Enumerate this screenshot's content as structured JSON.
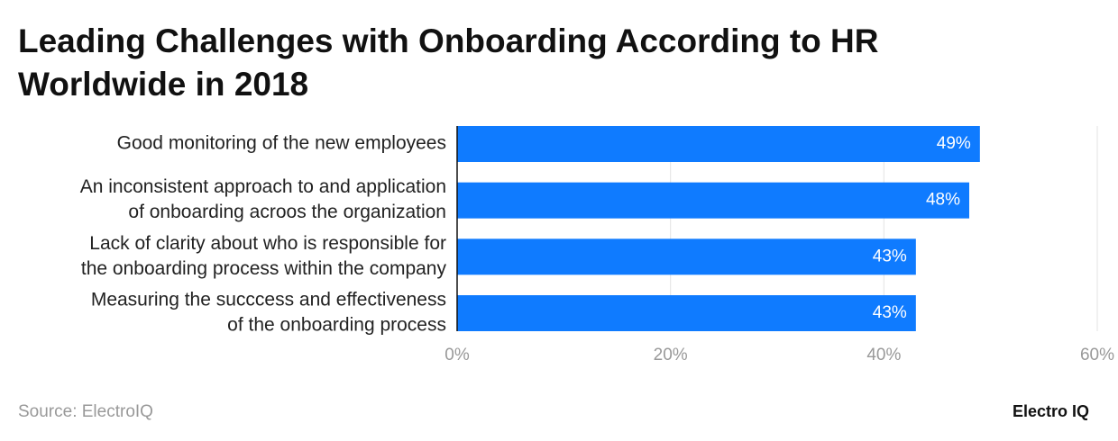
{
  "chart_data": {
    "type": "barh",
    "title": "Leading Challenges with Onboarding According to HR Worldwide in 2018",
    "categories": [
      [
        "Good monitoring of the new employees"
      ],
      [
        "An inconsistent approach to and application",
        "of onboarding acroos the organization"
      ],
      [
        "Lack of clarity about who is responsible for",
        "the onboarding process within the company"
      ],
      [
        "Measuring the succcess and effectiveness",
        "of the onboarding process"
      ]
    ],
    "values": [
      49,
      48,
      43,
      43
    ],
    "value_labels": [
      "49%",
      "48%",
      "43%",
      "43%"
    ],
    "color": "#0f7bff",
    "xlim": [
      0,
      60
    ],
    "xticks": [
      {
        "value": 0,
        "label": "0%"
      },
      {
        "value": 20,
        "label": "20%"
      },
      {
        "value": 40,
        "label": "40%"
      },
      {
        "value": 60,
        "label": "60%"
      }
    ],
    "grid": true,
    "source": "Source: ElectroIQ",
    "brand": "Electro IQ"
  }
}
